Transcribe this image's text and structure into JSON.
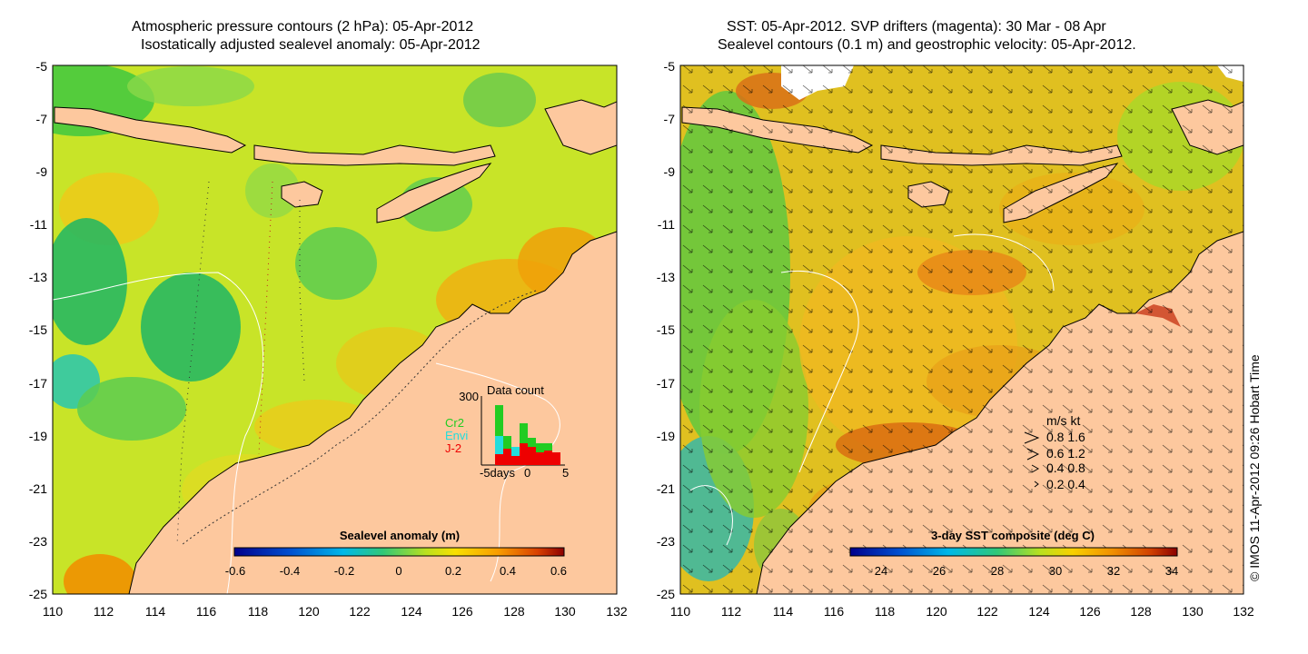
{
  "left_panel": {
    "title_line1": "Atmospheric pressure contours (2 hPa): 05-Apr-2012",
    "title_line2": "Isostatically adjusted sealevel anomaly: 05-Apr-2012",
    "colorbar": {
      "label": "Sealevel anomaly (m)",
      "ticks": [
        "-0.6",
        "-0.4",
        "-0.2",
        "0",
        "0.2",
        "0.4",
        "0.6"
      ],
      "range": [
        -0.6,
        0.6
      ]
    },
    "data_count": {
      "title": "Data count",
      "y_max_label": "300",
      "x_label": "-5days",
      "x_mid": "0",
      "x_end": "5",
      "legend": [
        {
          "name": "Cr2",
          "color": "#22cc22"
        },
        {
          "name": "Envi",
          "color": "#22dddd"
        },
        {
          "name": "J-2",
          "color": "#ee0000"
        }
      ]
    }
  },
  "right_panel": {
    "title_line1": "SST: 05-Apr-2012. SVP drifters (magenta): 30 Mar - 08 Apr",
    "title_line2": "Sealevel contours (0.1 m) and geostrophic velocity: 05-Apr-2012.",
    "colorbar": {
      "label": "3-day SST composite (deg C)",
      "ticks": [
        "24",
        "26",
        "28",
        "30",
        "32",
        "34"
      ],
      "range": [
        23,
        34.2
      ]
    },
    "velocity_legend": {
      "header": "m/s  kt",
      "rows": [
        "0.8  1.6",
        "0.6  1.2",
        "0.4  0.8",
        "0.2  0.4"
      ]
    }
  },
  "axes": {
    "lat_ticks": [
      "-5",
      "-7",
      "-9",
      "-11",
      "-13",
      "-15",
      "-17",
      "-19",
      "-21",
      "-23",
      "-25"
    ],
    "lon_ticks": [
      "110",
      "112",
      "114",
      "116",
      "118",
      "120",
      "122",
      "124",
      "126",
      "128",
      "130",
      "132"
    ]
  },
  "credit": "© IMOS 11-Apr-2012 09:26 Hobart Time",
  "colors": {
    "land": "#fdc89e",
    "sla_cmap": [
      "#00008c",
      "#0050d0",
      "#00b8e8",
      "#30c878",
      "#b8e020",
      "#f8e000",
      "#f89c00",
      "#d84000",
      "#8c0000"
    ],
    "sst_cmap": [
      "#00008c",
      "#0050d0",
      "#00b8e8",
      "#30c878",
      "#b8e020",
      "#f8d000",
      "#f09000",
      "#d04000",
      "#8c0000"
    ]
  }
}
